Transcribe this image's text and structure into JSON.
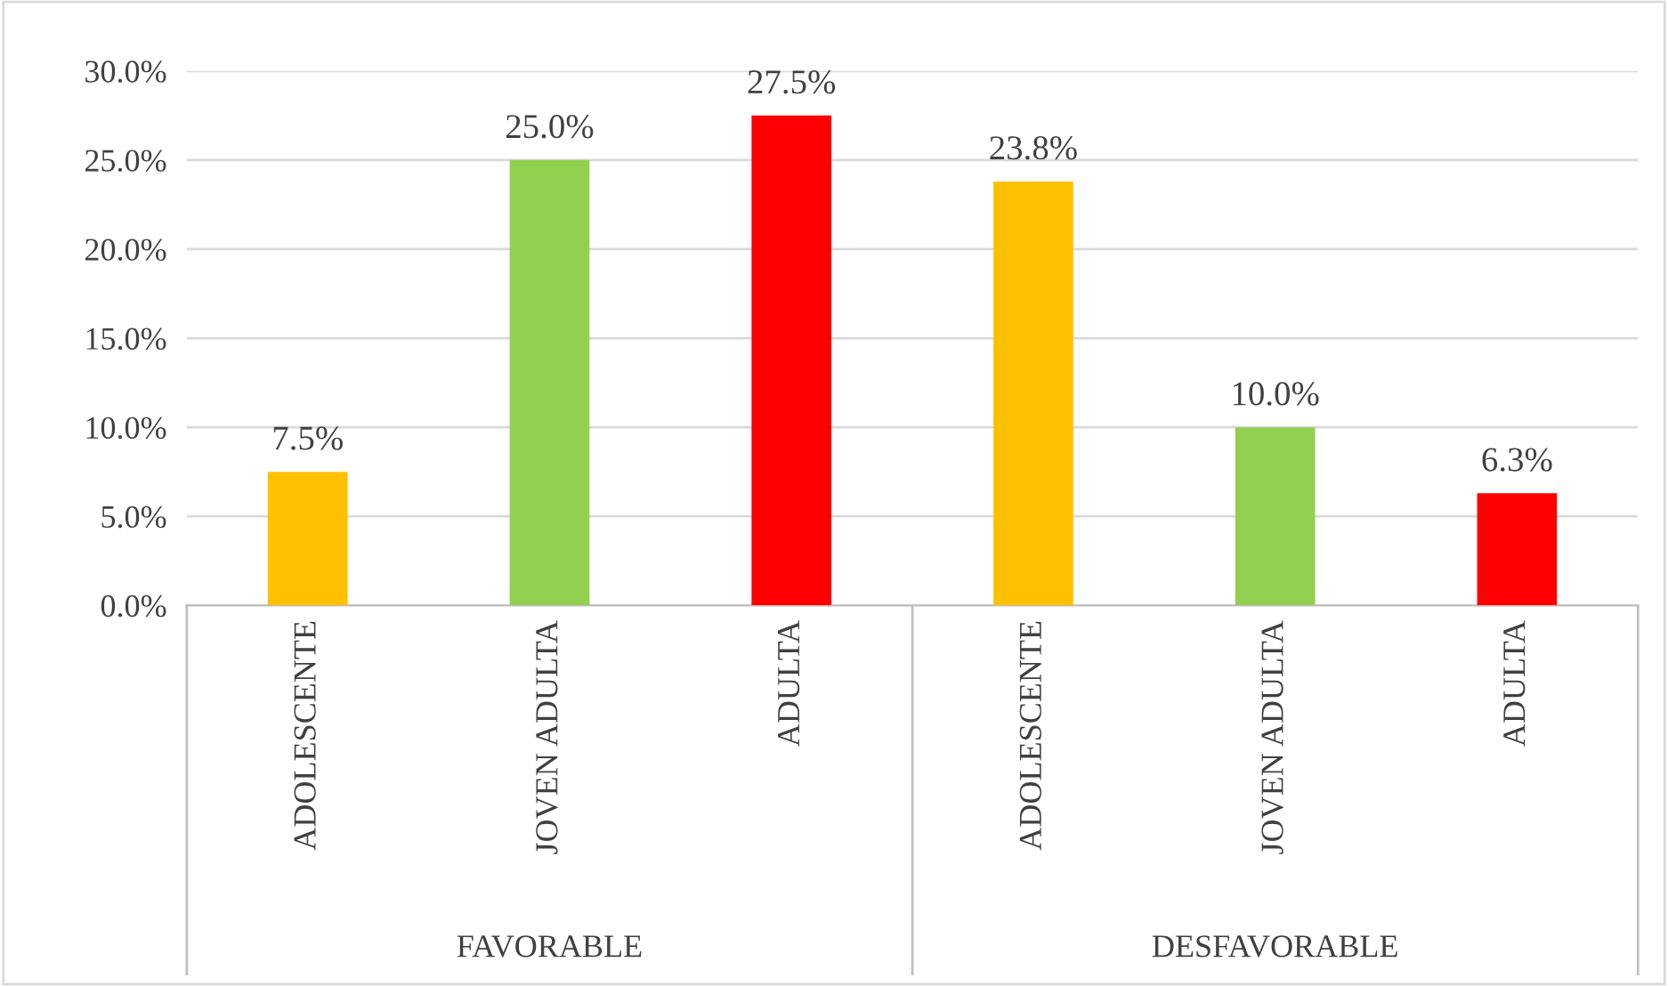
{
  "chart_data": {
    "type": "bar",
    "categories": [
      "ADOLESCENTE",
      "JOVEN ADULTA",
      "ADULTA",
      "ADOLESCENTE",
      "JOVEN ADULTA",
      "ADULTA"
    ],
    "values": [
      7.5,
      25.0,
      27.5,
      23.8,
      10.0,
      6.3
    ],
    "colors": [
      "#ffc000",
      "#92d050",
      "#ff0000",
      "#ffc000",
      "#92d050",
      "#ff0000"
    ],
    "value_labels": [
      "7.5%",
      "25.0%",
      "27.5%",
      "23.8%",
      "10.0%",
      "6.3%"
    ],
    "annotations": [
      "FAVORABLE",
      "DESFAVORABLE"
    ],
    "ylim": [
      0,
      30
    ],
    "yticks": [
      {
        "value": 0,
        "label": "0.0%"
      },
      {
        "value": 5,
        "label": "5.0%"
      },
      {
        "value": 10,
        "label": "10.0%"
      },
      {
        "value": 15,
        "label": "15.0%"
      },
      {
        "value": 20,
        "label": "20.0%"
      },
      {
        "value": 25,
        "label": "25.0%"
      },
      {
        "value": 30,
        "label": "30.0%"
      }
    ],
    "grid": "y",
    "legend": false
  }
}
